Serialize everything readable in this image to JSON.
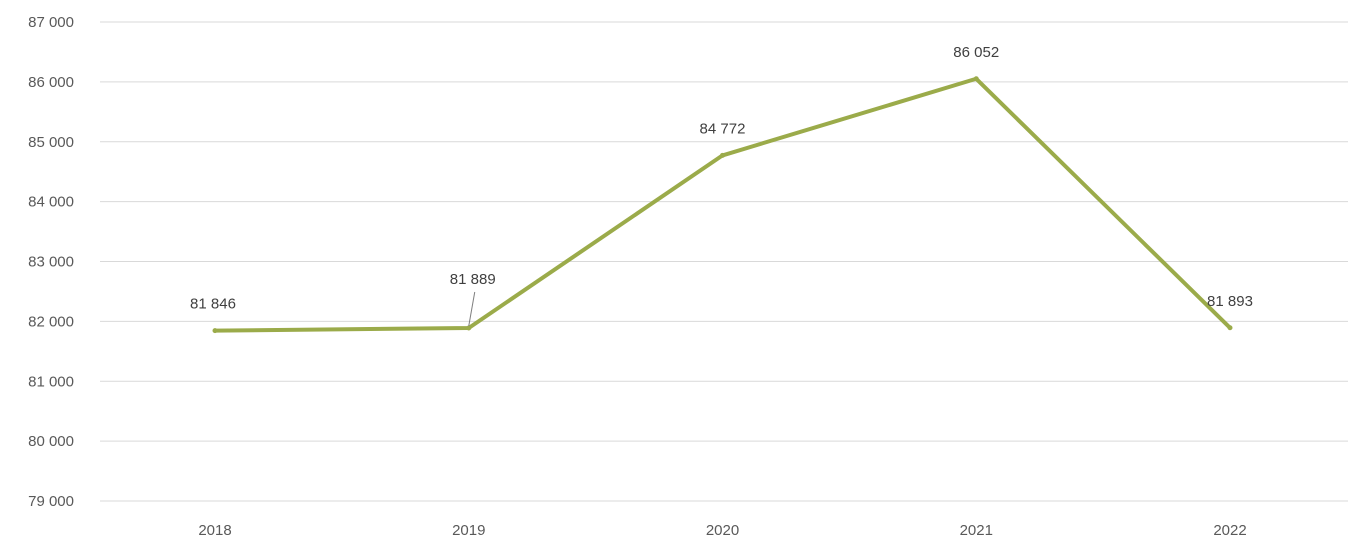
{
  "chart_data": {
    "type": "line",
    "categories": [
      "2018",
      "2019",
      "2020",
      "2021",
      "2022"
    ],
    "series": [
      {
        "values": [
          81846,
          81889,
          84772,
          86052,
          81893
        ],
        "data_labels": [
          "81 846",
          "81 889",
          "84 772",
          "86 052",
          "81 893"
        ],
        "color": "#9bab4a"
      }
    ],
    "y_ticks": [
      79000,
      80000,
      81000,
      82000,
      83000,
      84000,
      85000,
      86000,
      87000
    ],
    "y_tick_labels": [
      "79 000",
      "80 000",
      "81 000",
      "82 000",
      "83 000",
      "84 000",
      "85 000",
      "86 000",
      "87 000"
    ],
    "ylim": [
      79000,
      87000
    ],
    "grid": true,
    "legend": "none",
    "title": "",
    "xlabel": "",
    "ylabel": ""
  },
  "colors": {
    "series_line": "#9bab4a",
    "gridline": "#d9d9d9",
    "tick_text": "#595959",
    "label_text": "#404040"
  }
}
